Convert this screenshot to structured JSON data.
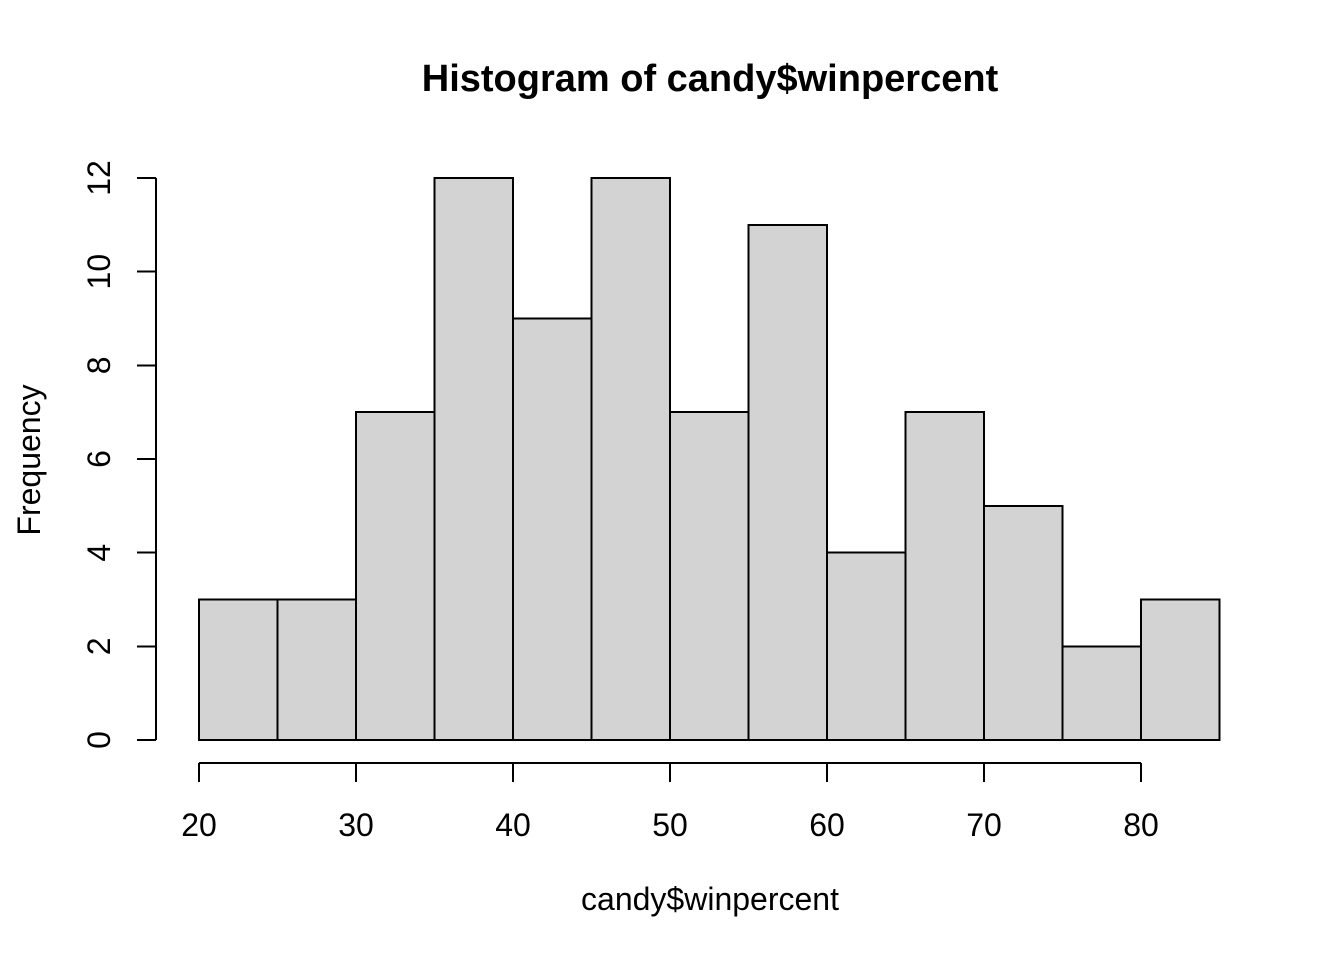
{
  "chart_data": {
    "type": "bar",
    "subtype": "histogram",
    "title": "Histogram of candy$winpercent",
    "xlabel": "candy$winpercent",
    "ylabel": "Frequency",
    "bin_edges": [
      20,
      25,
      30,
      35,
      40,
      45,
      50,
      55,
      60,
      65,
      70,
      75,
      80,
      85
    ],
    "frequencies": [
      3,
      3,
      7,
      12,
      9,
      12,
      7,
      11,
      4,
      7,
      5,
      2,
      3
    ],
    "x_ticks": [
      20,
      30,
      40,
      50,
      60,
      70,
      80
    ],
    "y_ticks": [
      0,
      2,
      4,
      6,
      8,
      10,
      12
    ],
    "xlim": [
      20,
      85
    ],
    "ylim": [
      0,
      12
    ],
    "grid": false,
    "legend": "none",
    "colors": {
      "bar_fill": "#d3d3d3",
      "bar_border": "#000000",
      "axis": "#000000",
      "text": "#000000",
      "background": "#ffffff"
    }
  }
}
